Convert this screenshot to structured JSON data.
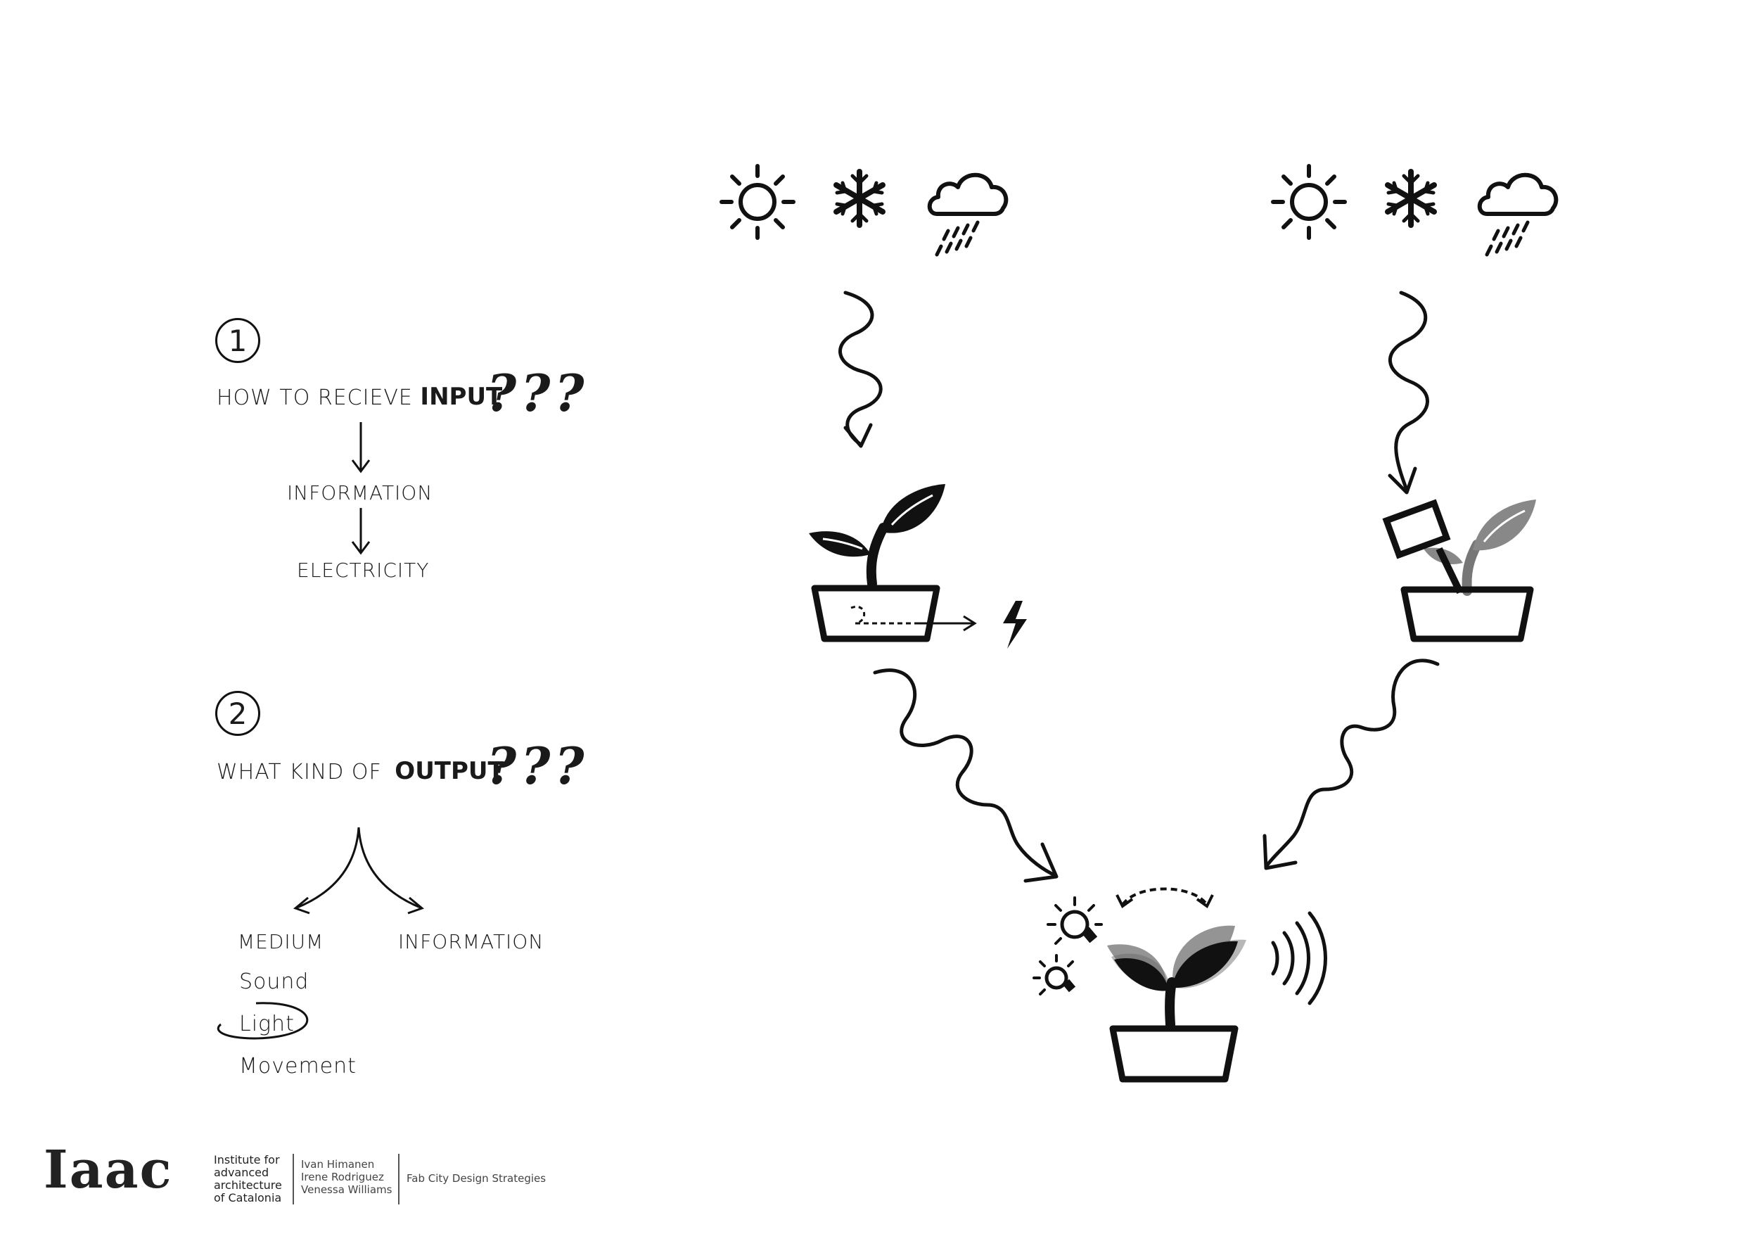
{
  "step1": {
    "number": "1",
    "question_prefix": "HOW TO RECIEVE",
    "question_emphasis": "INPUT",
    "question_marks": "???",
    "flow": [
      "INFORMATION",
      "ELECTRICITY"
    ]
  },
  "step2": {
    "number": "2",
    "question_prefix": "WHAT KIND OF",
    "question_emphasis": "OUTPUT",
    "question_marks": "???",
    "branches": [
      "MEDIUM",
      "INFORMATION"
    ],
    "medium_options": [
      "Sound",
      "Light",
      "Movement"
    ],
    "highlighted_option": "Light"
  },
  "footer": {
    "logo_text": "Iaac",
    "institute": [
      "Institute for",
      "advanced",
      "architecture",
      "of Catalonia"
    ],
    "authors": [
      "Ivan Himanen",
      "Irene Rodriguez",
      "Venessa Williams"
    ],
    "course": "Fab City Design Strategies"
  },
  "icons": {
    "weather_left": [
      "sun-icon",
      "snowflake-icon",
      "rain-cloud-icon"
    ],
    "weather_right": [
      "sun-icon",
      "snowflake-icon",
      "rain-cloud-icon"
    ],
    "plants": [
      "plant-with-battery-icon",
      "plant-with-sensor-icon",
      "plant-output-icon"
    ],
    "outputs": [
      "lightbulb-icon",
      "sound-waves-icon",
      "movement-arrow-icon",
      "lightning-icon"
    ]
  }
}
